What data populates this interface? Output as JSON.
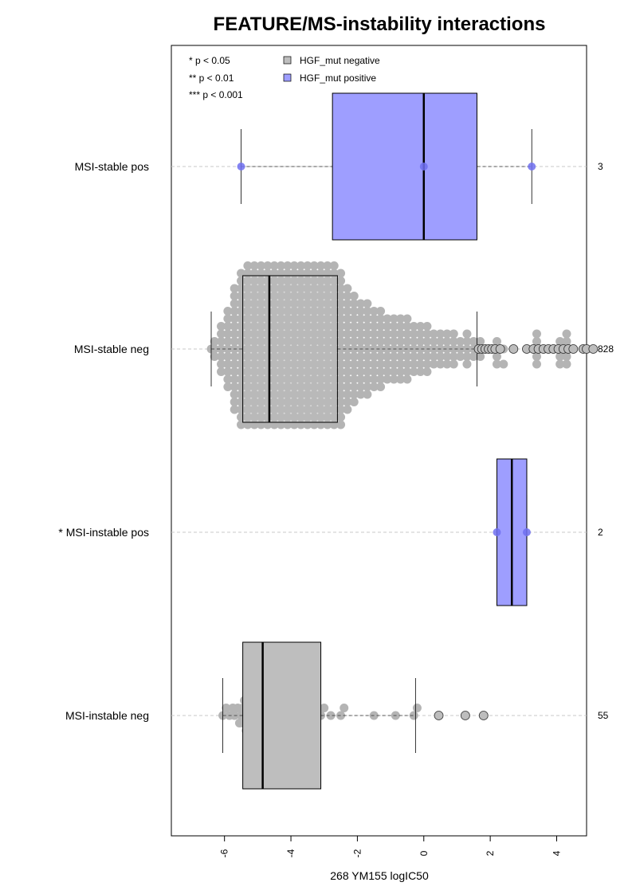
{
  "chart_data": {
    "type": "boxplot",
    "title": "FEATURE/MS-instability interactions",
    "xlabel": "268 YM155 logIC50",
    "ylabel": "",
    "xlim": [
      -7.6,
      4.9
    ],
    "x_ticks": [
      -6,
      -4,
      -2,
      0,
      2,
      4
    ],
    "x_tick_labels": [
      "-6",
      "-4",
      "-2",
      "0",
      "2",
      "4"
    ],
    "significance_legend": [
      "* p < 0.05",
      "** p < 0.01",
      "*** p < 0.001"
    ],
    "legend": [
      {
        "label": "HGF_mut negative",
        "color": "#bebebe"
      },
      {
        "label": "HGF_mut positive",
        "color": "#9e9eff"
      }
    ],
    "grid": "horizontal dashed lines at each group",
    "groups": [
      {
        "label": "MSI-stable pos",
        "count": "3",
        "mutation": "positive",
        "color": "#9e9eff",
        "point_color": "#6f6ff0",
        "q1": -2.75,
        "median": 0.0,
        "q3": 1.6,
        "whisker_low": -5.5,
        "whisker_high": 3.25,
        "points": [
          -5.5,
          0.0,
          3.25
        ],
        "outliers": []
      },
      {
        "label": "MSI-stable neg",
        "count": "828",
        "mutation": "negative",
        "color": "#bebebe",
        "point_color": "#b4b4b4",
        "q1": -5.45,
        "median": -4.65,
        "q3": -2.6,
        "whisker_low": -6.4,
        "whisker_high": 1.6,
        "points": [],
        "outliers": [
          1.65,
          1.75,
          1.85,
          1.95,
          2.05,
          2.15,
          2.3,
          2.7,
          3.1,
          3.3,
          3.45,
          3.6,
          3.75,
          3.9,
          4.05,
          4.2,
          4.35,
          4.5,
          4.8,
          4.9,
          5.1
        ]
      },
      {
        "label": "* MSI-instable pos",
        "count": "2",
        "mutation": "positive",
        "color": "#9e9eff",
        "point_color": "#6f6ff0",
        "q1": 2.2,
        "median": 2.65,
        "q3": 3.1,
        "whisker_low": 2.2,
        "whisker_high": 3.1,
        "points": [
          2.2,
          3.1
        ],
        "outliers": []
      },
      {
        "label": "MSI-instable neg",
        "count": "55",
        "mutation": "negative",
        "color": "#bebebe",
        "point_color": "#b4b4b4",
        "q1": -5.45,
        "median": -4.85,
        "q3": -3.1,
        "whisker_low": -6.05,
        "whisker_high": -0.25,
        "points": [
          -6.05,
          -5.95,
          -5.85,
          -5.75,
          -5.7,
          -5.6,
          -5.55,
          -5.5,
          -5.45,
          -5.45,
          -5.4,
          -5.35,
          -5.3,
          -5.25,
          -5.2,
          -5.15,
          -5.1,
          -5.05,
          -5.0,
          -4.95,
          -4.9,
          -4.85,
          -4.8,
          -4.75,
          -4.7,
          -4.65,
          -4.6,
          -4.55,
          -4.5,
          -4.45,
          -4.4,
          -4.3,
          -4.25,
          -4.2,
          -4.15,
          -4.1,
          -4.0,
          -3.95,
          -3.9,
          -3.85,
          -3.8,
          -3.7,
          -3.6,
          -3.5,
          -3.4,
          -3.3,
          -3.1,
          -3.0,
          -2.8,
          -2.5,
          -2.4,
          -1.5,
          -0.85,
          -0.3,
          -0.2
        ],
        "outliers": [
          0.45,
          1.25,
          1.8
        ]
      }
    ],
    "stable_neg_beeswarm_columns": [
      {
        "x": -6.4,
        "n": 1
      },
      {
        "x": -6.3,
        "n": 3
      },
      {
        "x": -6.1,
        "n": 7
      },
      {
        "x": -5.9,
        "n": 11
      },
      {
        "x": -5.7,
        "n": 17
      },
      {
        "x": -5.5,
        "n": 21
      },
      {
        "x": -5.3,
        "n": 22
      },
      {
        "x": -5.1,
        "n": 22
      },
      {
        "x": -4.9,
        "n": 22
      },
      {
        "x": -4.7,
        "n": 22
      },
      {
        "x": -4.5,
        "n": 22
      },
      {
        "x": -4.3,
        "n": 22
      },
      {
        "x": -4.1,
        "n": 22
      },
      {
        "x": -3.9,
        "n": 22
      },
      {
        "x": -3.7,
        "n": 22
      },
      {
        "x": -3.5,
        "n": 22
      },
      {
        "x": -3.3,
        "n": 22
      },
      {
        "x": -3.1,
        "n": 22
      },
      {
        "x": -2.9,
        "n": 22
      },
      {
        "x": -2.7,
        "n": 22
      },
      {
        "x": -2.5,
        "n": 21
      },
      {
        "x": -2.3,
        "n": 17
      },
      {
        "x": -2.1,
        "n": 15
      },
      {
        "x": -1.9,
        "n": 13
      },
      {
        "x": -1.7,
        "n": 13
      },
      {
        "x": -1.5,
        "n": 11
      },
      {
        "x": -1.3,
        "n": 11
      },
      {
        "x": -1.1,
        "n": 9
      },
      {
        "x": -0.9,
        "n": 9
      },
      {
        "x": -0.7,
        "n": 9
      },
      {
        "x": -0.5,
        "n": 9
      },
      {
        "x": -0.3,
        "n": 7
      },
      {
        "x": -0.1,
        "n": 7
      },
      {
        "x": 0.1,
        "n": 7
      },
      {
        "x": 0.3,
        "n": 5
      },
      {
        "x": 0.5,
        "n": 5
      },
      {
        "x": 0.7,
        "n": 5
      },
      {
        "x": 0.9,
        "n": 5
      },
      {
        "x": 1.1,
        "n": 3
      },
      {
        "x": 1.3,
        "n": 5
      },
      {
        "x": 1.5,
        "n": 3
      },
      {
        "x": 1.7,
        "n": 3
      },
      {
        "x": 2.2,
        "n": 3
      },
      {
        "x": 2.4,
        "n": 1
      },
      {
        "x": 3.4,
        "n": 3
      },
      {
        "x": 4.1,
        "n": 3
      },
      {
        "x": 4.3,
        "n": 3
      }
    ]
  }
}
